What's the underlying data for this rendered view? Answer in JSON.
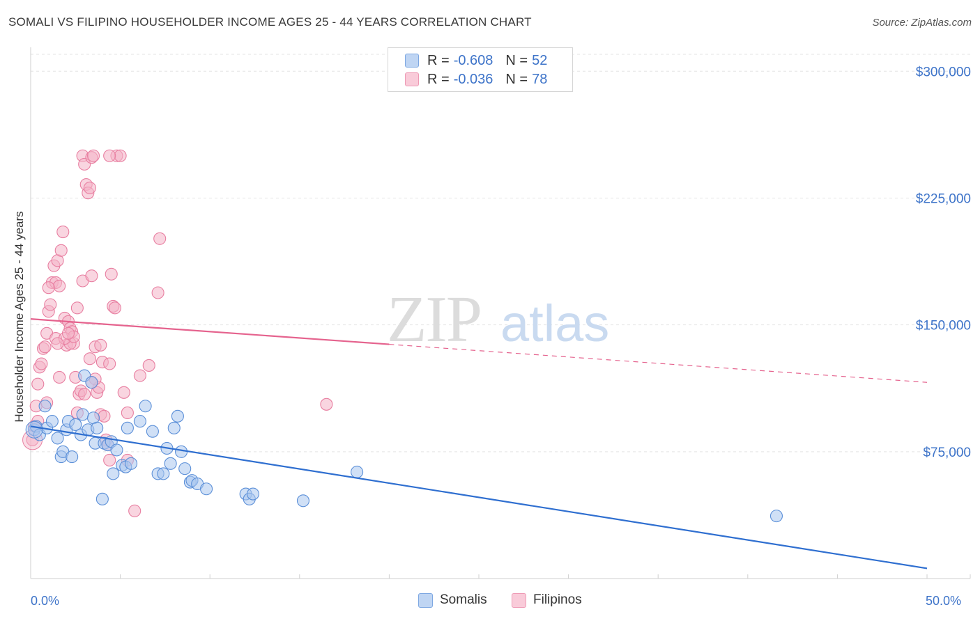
{
  "header": {
    "title": "SOMALI VS FILIPINO HOUSEHOLDER INCOME AGES 25 - 44 YEARS CORRELATION CHART",
    "source": "Source: ZipAtlas.com"
  },
  "watermark": {
    "zip": "ZIP",
    "atlas": "atlas"
  },
  "legend_top": {
    "rows": [
      {
        "r_label": "R =",
        "r_value": "-0.608",
        "n_label": "N =",
        "n_value": "52",
        "color": "#a9c6ef"
      },
      {
        "r_label": "R =",
        "r_value": "-0.036",
        "n_label": "N =",
        "n_value": "78",
        "color": "#f4b3c7"
      }
    ]
  },
  "legend_bottom": {
    "items": [
      {
        "label": "Somalis",
        "color": "#a9c6ef"
      },
      {
        "label": "Filipinos",
        "color": "#f4b3c7"
      }
    ]
  },
  "chart_data": {
    "type": "scatter",
    "title": "SOMALI VS FILIPINO HOUSEHOLDER INCOME AGES 25 - 44 YEARS CORRELATION CHART",
    "xlabel": "",
    "ylabel": "Householder Income Ages 25 - 44 years",
    "xlim": [
      0,
      50
    ],
    "ylim": [
      0,
      310000
    ],
    "x_tick_labels": [
      "0.0%",
      "50.0%"
    ],
    "y_ticks": [
      75000,
      150000,
      225000,
      300000
    ],
    "y_tick_labels": [
      "$75,000",
      "$150,000",
      "$225,000",
      "$300,000"
    ],
    "grid": true,
    "legend_position": "top-center",
    "colors": {
      "somalis_fill": "#a9c6ef",
      "somalis_edge": "#5b8fd8",
      "somalis_line": "#2f6fd0",
      "filipinos_fill": "#f4b3c7",
      "filipinos_edge": "#e87fa1",
      "filipinos_line": "#e5638e",
      "tick_label": "#3e74c9"
    },
    "series": [
      {
        "name": "Somalis",
        "x": [
          0.2,
          0.3,
          0.5,
          0.8,
          0.9,
          1.2,
          1.5,
          1.7,
          1.8,
          2.0,
          2.1,
          2.3,
          2.5,
          2.8,
          2.9,
          3.0,
          3.2,
          3.4,
          3.5,
          3.6,
          3.7,
          4.0,
          4.1,
          4.3,
          4.5,
          4.6,
          4.8,
          5.1,
          5.3,
          5.4,
          5.6,
          6.1,
          6.4,
          6.8,
          7.1,
          7.4,
          7.6,
          7.8,
          8.0,
          8.2,
          8.4,
          8.6,
          8.9,
          9.0,
          9.3,
          9.8,
          12.0,
          12.2,
          12.4,
          15.2,
          18.2,
          41.6
        ],
        "y": [
          88000,
          90000,
          85000,
          102000,
          89000,
          93000,
          83000,
          72000,
          75000,
          88000,
          93000,
          72000,
          91000,
          85000,
          97000,
          120000,
          88000,
          116000,
          95000,
          80000,
          89000,
          47000,
          80000,
          79000,
          81000,
          62000,
          76000,
          67000,
          66000,
          89000,
          68000,
          93000,
          102000,
          87000,
          62000,
          62000,
          77000,
          68000,
          89000,
          96000,
          75000,
          65000,
          57000,
          58000,
          56000,
          53000,
          50000,
          47000,
          50000,
          46000,
          63000,
          37000
        ],
        "r": "-0.608",
        "n": "52",
        "trend": {
          "x": [
            0,
            50
          ],
          "y": [
            90000,
            6000
          ]
        }
      },
      {
        "name": "Filipinos",
        "x": [
          0.1,
          0.2,
          0.3,
          0.4,
          0.5,
          0.6,
          0.7,
          0.8,
          0.9,
          1.0,
          1.1,
          1.2,
          1.3,
          1.4,
          1.5,
          1.6,
          1.7,
          1.8,
          1.9,
          2.0,
          2.1,
          2.2,
          2.3,
          2.4,
          2.5,
          2.6,
          2.7,
          2.8,
          2.9,
          3.0,
          3.1,
          3.2,
          3.3,
          3.4,
          3.5,
          3.6,
          3.7,
          3.8,
          3.9,
          4.0,
          4.1,
          4.2,
          4.3,
          4.4,
          4.5,
          4.6,
          4.7,
          4.8,
          5.0,
          5.2,
          5.4,
          5.8,
          6.1,
          6.6,
          7.1,
          7.2,
          1.0,
          1.6,
          2.2,
          3.0,
          3.6,
          4.4,
          0.4,
          0.9,
          1.4,
          1.9,
          2.4,
          2.9,
          3.4,
          3.9,
          4.4,
          5.4,
          2.6,
          3.3,
          1.5,
          2.1,
          3.4,
          16.5
        ],
        "y": [
          82000,
          90000,
          102000,
          115000,
          125000,
          127000,
          136000,
          137000,
          145000,
          158000,
          162000,
          175000,
          185000,
          175000,
          188000,
          173000,
          194000,
          205000,
          154000,
          138000,
          152000,
          148000,
          146000,
          139000,
          119000,
          98000,
          109000,
          111000,
          250000,
          245000,
          233000,
          228000,
          231000,
          249000,
          250000,
          137000,
          110000,
          113000,
          97000,
          128000,
          96000,
          82000,
          79000,
          70000,
          180000,
          161000,
          160000,
          250000,
          250000,
          110000,
          70000,
          40000,
          120000,
          126000,
          169000,
          201000,
          172000,
          119000,
          139000,
          109000,
          118000,
          127000,
          93000,
          104000,
          142000,
          142000,
          143000,
          176000,
          179000,
          138000,
          250000,
          98000,
          160000,
          130000,
          139000,
          145000,
          116000,
          103000
        ],
        "r": "-0.036",
        "n": "78",
        "trend": {
          "x": [
            0,
            50
          ],
          "y": [
            153500,
            116000
          ]
        }
      }
    ]
  }
}
